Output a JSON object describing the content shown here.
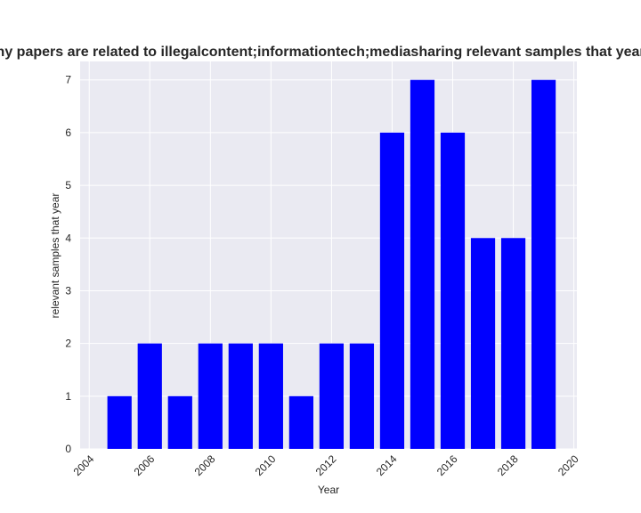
{
  "chart_data": {
    "type": "bar",
    "title": "How many papers are related to illegalcontent;informationtech;mediasharing relevant samples that year in privacy",
    "xlabel": "Year",
    "ylabel": "relevant samples that year",
    "x": [
      2005,
      2006,
      2007,
      2008,
      2009,
      2010,
      2011,
      2012,
      2013,
      2014,
      2015,
      2016,
      2017,
      2018,
      2019
    ],
    "values": [
      1,
      2,
      1,
      2,
      2,
      2,
      1,
      2,
      2,
      6,
      7,
      6,
      4,
      4,
      7
    ],
    "xlim": [
      2003.7,
      2020.1
    ],
    "ylim": [
      0,
      7.35
    ],
    "xticks": [
      "2004",
      "2006",
      "2008",
      "2010",
      "2012",
      "2014",
      "2016",
      "2018",
      "2020"
    ],
    "yticks": [
      "0",
      "1",
      "2",
      "3",
      "4",
      "5",
      "6",
      "7"
    ],
    "grid": true,
    "colors": {
      "bar": "#0000ff",
      "plot_bg": "#eaeaf2",
      "grid": "#ffffff"
    }
  }
}
